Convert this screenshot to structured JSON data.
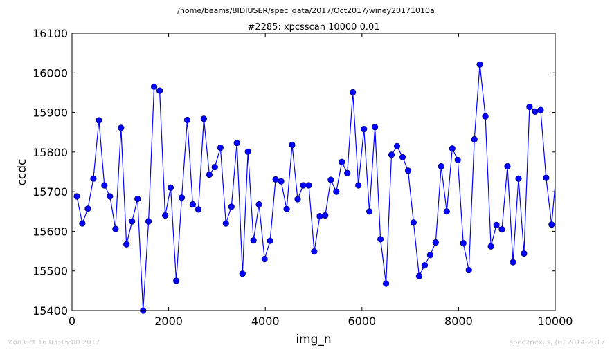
{
  "header": {
    "path": "/home/beams/8IDIUSER/spec_data/2017/Oct2017/winey20171010a"
  },
  "footer": {
    "timestamp": "Mon Oct 16 03:15:00 2017",
    "credit": "spec2nexus, (C) 2014-2017"
  },
  "colors": {
    "series": "#0000ff",
    "marker_fill": "#0000ff",
    "marker_edge": "#000080"
  },
  "chart_data": {
    "type": "line",
    "title": "#2285: xpcsscan 10000 0.01",
    "xlabel": "img_n",
    "ylabel": "ccdc",
    "xlim": [
      0,
      10000
    ],
    "ylim": [
      15400,
      16100
    ],
    "xticks": [
      "0",
      "2000",
      "4000",
      "6000",
      "8000",
      "10000"
    ],
    "yticks": [
      "15400",
      "15500",
      "15600",
      "15700",
      "15800",
      "15900",
      "16000",
      "16100"
    ],
    "grid": false,
    "legend": "none",
    "series": [
      {
        "x": [
          100,
          214,
          328,
          443,
          557,
          671,
          785,
          900,
          1014,
          1128,
          1242,
          1357,
          1471,
          1585,
          1699,
          1814,
          1928,
          2042,
          2157,
          2271,
          2385,
          2499,
          2614,
          2728,
          2842,
          2956,
          3071,
          3185,
          3299,
          3413,
          3528,
          3642,
          3756,
          3870,
          3985,
          4099,
          4213,
          4327,
          4442,
          4556,
          4670,
          4784,
          4899,
          5013,
          5127,
          5241,
          5356,
          5470,
          5584,
          5698,
          5813,
          5927,
          6041,
          6155,
          6270,
          6384,
          6498,
          6612,
          6727,
          6841,
          6955,
          7069,
          7184,
          7298,
          7412,
          7526,
          7641,
          7755,
          7869,
          7983,
          8098,
          8212,
          8326,
          8440,
          8555,
          8669,
          8783,
          8897,
          9012,
          9126,
          9240,
          9354,
          9469,
          9583,
          9697,
          9811,
          9926,
          10040
        ],
        "y": [
          15688,
          15620,
          15657,
          15733,
          15880,
          15716,
          15688,
          15606,
          15861,
          15567,
          15625,
          15682,
          15400,
          15625,
          15965,
          15955,
          15640,
          15710,
          15475,
          15685,
          15881,
          15668,
          15655,
          15884,
          15743,
          15762,
          15811,
          15620,
          15662,
          15823,
          15493,
          15801,
          15577,
          15668,
          15530,
          15576,
          15731,
          15726,
          15656,
          15818,
          15681,
          15716,
          15716,
          15549,
          15638,
          15640,
          15730,
          15700,
          15775,
          15747,
          15951,
          15716,
          15858,
          15650,
          15863,
          15580,
          15468,
          15793,
          15815,
          15787,
          15753,
          15622,
          15487,
          15514,
          15540,
          15572,
          15764,
          15650,
          15809,
          15780,
          15570,
          15502,
          15832,
          16021,
          15890,
          15562,
          15616,
          15605,
          15764,
          15522,
          15733,
          15544,
          15914,
          15902,
          15906,
          15735,
          15617,
          15772
        ]
      }
    ]
  }
}
